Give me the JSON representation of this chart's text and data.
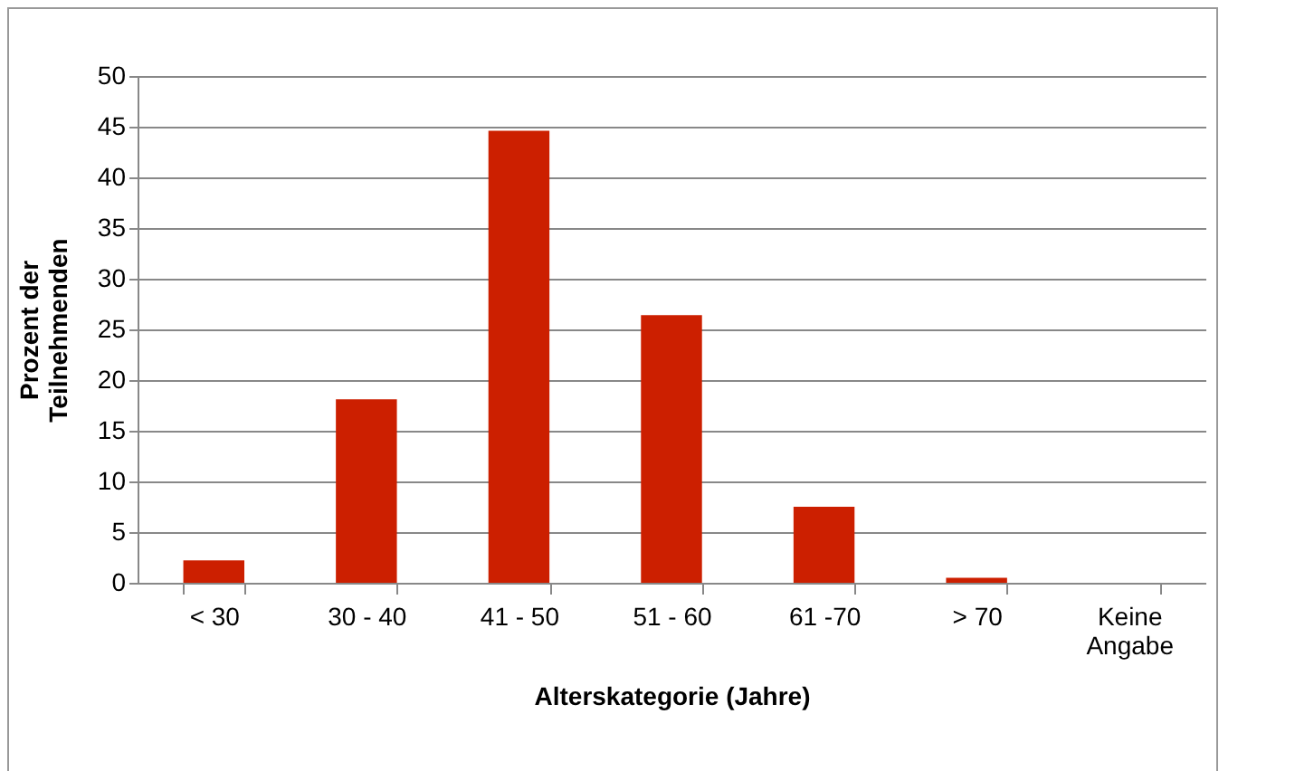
{
  "chart_data": {
    "type": "bar",
    "xlabel": "Alterskategorie (Jahre)",
    "ylabel": "Prozent der Teilnehmenden",
    "categories": [
      "< 30",
      "30 - 40",
      "41 - 50",
      "51 - 60",
      "61 -70",
      "> 70",
      "Keine Angabe"
    ],
    "values": [
      2.2,
      18.1,
      44.6,
      26.4,
      7.5,
      0.5,
      0
    ],
    "color": "#cc1f00",
    "ylim": [
      0,
      50
    ],
    "yticks": [
      0,
      5,
      10,
      15,
      20,
      25,
      30,
      35,
      40,
      45,
      50
    ],
    "grid": "y"
  }
}
